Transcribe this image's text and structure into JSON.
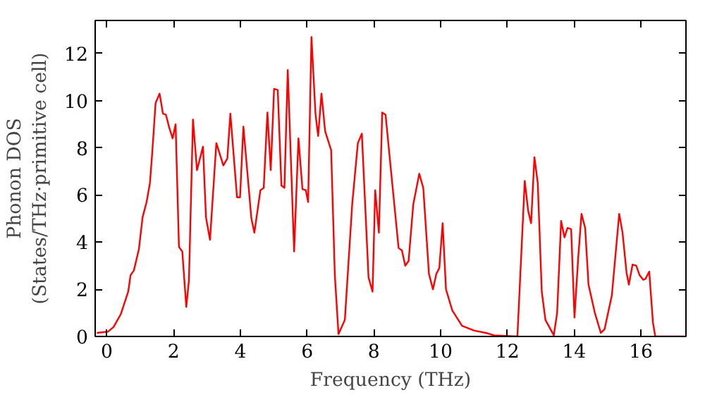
{
  "chart_data": {
    "type": "line",
    "xlabel": "Frequency (THz)",
    "ylabel": "Phonon DOS\n(States/THz·primitive cell)",
    "xlim": [
      -0.35,
      17.35
    ],
    "ylim": [
      0,
      13.4
    ],
    "xticks": [
      0,
      2,
      4,
      6,
      8,
      10,
      12,
      14,
      16
    ],
    "yticks": [
      0,
      2,
      4,
      6,
      8,
      10,
      12
    ],
    "grid": false,
    "line_style": "solid",
    "series": [
      {
        "color": "#ff0000",
        "x": [
          -0.3,
          0.03,
          0.2,
          0.42,
          0.64,
          0.71,
          0.81,
          0.96,
          1.07,
          1.19,
          1.29,
          1.36,
          1.46,
          1.58,
          1.68,
          1.77,
          1.87,
          1.97,
          2.06,
          2.16,
          2.26,
          2.38,
          2.46,
          2.58,
          2.7,
          2.88,
          2.97,
          3.09,
          3.28,
          3.49,
          3.61,
          3.7,
          3.9,
          3.99,
          4.09,
          4.33,
          4.42,
          4.6,
          4.7,
          4.81,
          4.91,
          5.01,
          5.12,
          5.23,
          5.32,
          5.42,
          5.61,
          5.74,
          5.86,
          5.96,
          6.03,
          6.13,
          6.25,
          6.33,
          6.43,
          6.54,
          6.72,
          6.83,
          6.94,
          7.13,
          7.35,
          7.52,
          7.64,
          7.84,
          7.96,
          8.04,
          8.15,
          8.25,
          8.35,
          8.57,
          8.74,
          8.84,
          8.94,
          9.04,
          9.18,
          9.36,
          9.48,
          9.65,
          9.77,
          9.87,
          9.96,
          10.06,
          10.16,
          10.35,
          10.64,
          11.0,
          11.36,
          11.6,
          12.3,
          12.52,
          12.62,
          12.71,
          12.81,
          12.91,
          13.03,
          13.14,
          13.39,
          13.49,
          13.61,
          13.71,
          13.8,
          13.91,
          14.01,
          14.12,
          14.22,
          14.33,
          14.43,
          14.62,
          14.8,
          14.91,
          15.13,
          15.35,
          15.45,
          15.57,
          15.64,
          15.75,
          15.86,
          15.96,
          16.07,
          16.14,
          16.25,
          16.36,
          16.43,
          17.3
        ],
        "values": [
          0.15,
          0.2,
          0.4,
          0.95,
          1.9,
          2.6,
          2.8,
          3.7,
          5.05,
          5.7,
          6.5,
          7.8,
          9.9,
          10.3,
          9.45,
          9.4,
          8.85,
          8.4,
          9.0,
          3.8,
          3.6,
          1.25,
          2.4,
          9.2,
          7.05,
          8.05,
          5.05,
          4.1,
          8.2,
          7.25,
          7.55,
          9.45,
          5.9,
          5.9,
          8.9,
          5.0,
          4.4,
          6.2,
          6.3,
          9.5,
          7.05,
          10.5,
          10.45,
          6.4,
          6.3,
          11.3,
          3.6,
          8.4,
          6.25,
          6.2,
          5.7,
          12.7,
          9.45,
          8.5,
          10.3,
          8.7,
          7.9,
          2.6,
          0.1,
          0.7,
          5.6,
          8.2,
          8.6,
          2.5,
          1.9,
          6.2,
          4.4,
          9.5,
          9.4,
          6.2,
          3.75,
          3.65,
          3.0,
          3.2,
          5.6,
          6.9,
          6.3,
          2.65,
          2.0,
          2.65,
          2.9,
          4.8,
          2.0,
          1.1,
          0.45,
          0.25,
          0.15,
          0.05,
          0.0,
          6.6,
          5.35,
          4.8,
          7.6,
          6.5,
          1.9,
          0.7,
          0.05,
          1.0,
          4.9,
          4.2,
          4.6,
          4.55,
          0.8,
          3.3,
          5.2,
          4.6,
          2.2,
          1.0,
          0.15,
          0.3,
          1.75,
          5.2,
          4.4,
          2.7,
          2.2,
          3.05,
          3.0,
          2.6,
          2.4,
          2.45,
          2.75,
          0.6,
          0.0,
          0.0
        ]
      }
    ]
  }
}
